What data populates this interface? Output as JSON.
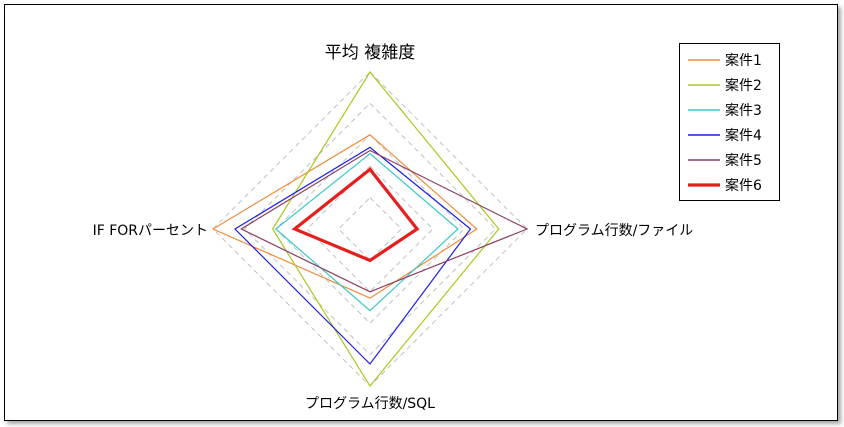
{
  "chart_data": {
    "type": "radar",
    "axes": [
      "平均 複雑度",
      "プログラム行数/ファイル",
      "プログラム行数/SQL",
      "IF FORパーセント"
    ],
    "rmax": 5,
    "rings": 5,
    "grid": true,
    "legend": "top-right",
    "series": [
      {
        "name": "案件1",
        "values": [
          3.0,
          3.4,
          2.2,
          5.0
        ],
        "color": "#f08c3c",
        "width": 1.2
      },
      {
        "name": "案件2",
        "values": [
          5.0,
          4.1,
          5.0,
          3.1
        ],
        "color": "#a8c81e",
        "width": 1.2
      },
      {
        "name": "案件3",
        "values": [
          2.4,
          2.8,
          2.6,
          3.0
        ],
        "color": "#3cc8c8",
        "width": 1.2
      },
      {
        "name": "案件4",
        "values": [
          2.6,
          3.2,
          4.3,
          4.3
        ],
        "color": "#1e1ee6",
        "width": 1.2
      },
      {
        "name": "案件5",
        "values": [
          2.5,
          5.0,
          2.0,
          4.1
        ],
        "color": "#8c3c64",
        "width": 1.2
      },
      {
        "name": "案件6",
        "values": [
          1.9,
          1.5,
          1.0,
          2.4
        ],
        "color": "#e61e1e",
        "width": 3.2
      }
    ]
  }
}
